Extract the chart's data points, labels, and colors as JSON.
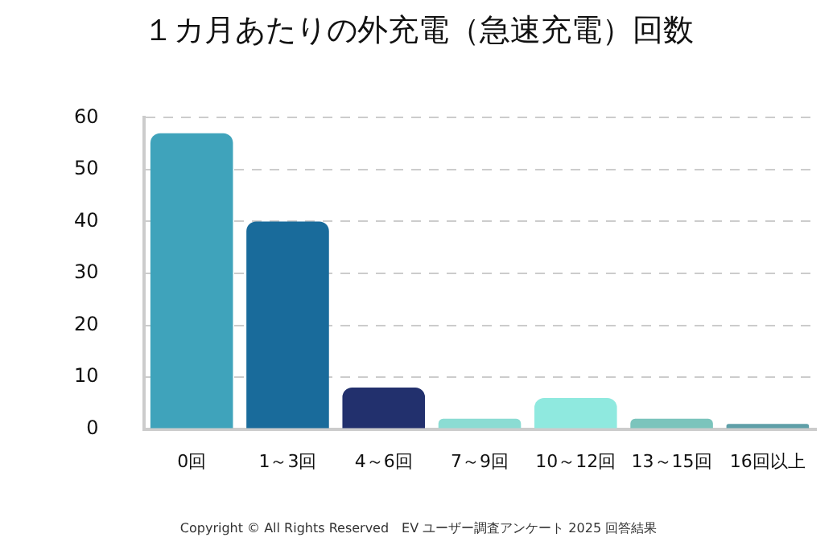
{
  "chart_data": {
    "type": "bar",
    "title": "１カ月あたりの外充電（急速充電）回数",
    "categories": [
      "0回",
      "1～3回",
      "4～6回",
      "7～9回",
      "10～12回",
      "13～15回",
      "16回以上"
    ],
    "values": [
      57,
      40,
      8,
      2,
      6,
      2,
      1
    ],
    "colors": [
      "#3fa3bb",
      "#196b9b",
      "#22306d",
      "#8bdcd3",
      "#8fe9df",
      "#7bc4bc",
      "#5f9fa8"
    ],
    "ylim": [
      0,
      60
    ],
    "yticks": [
      0,
      10,
      20,
      30,
      40,
      50,
      60
    ],
    "grid": "y",
    "annotations": [
      "Copyright © All Rights Reserved　EV ユーザー調査アンケート 2025 回答結果"
    ]
  }
}
